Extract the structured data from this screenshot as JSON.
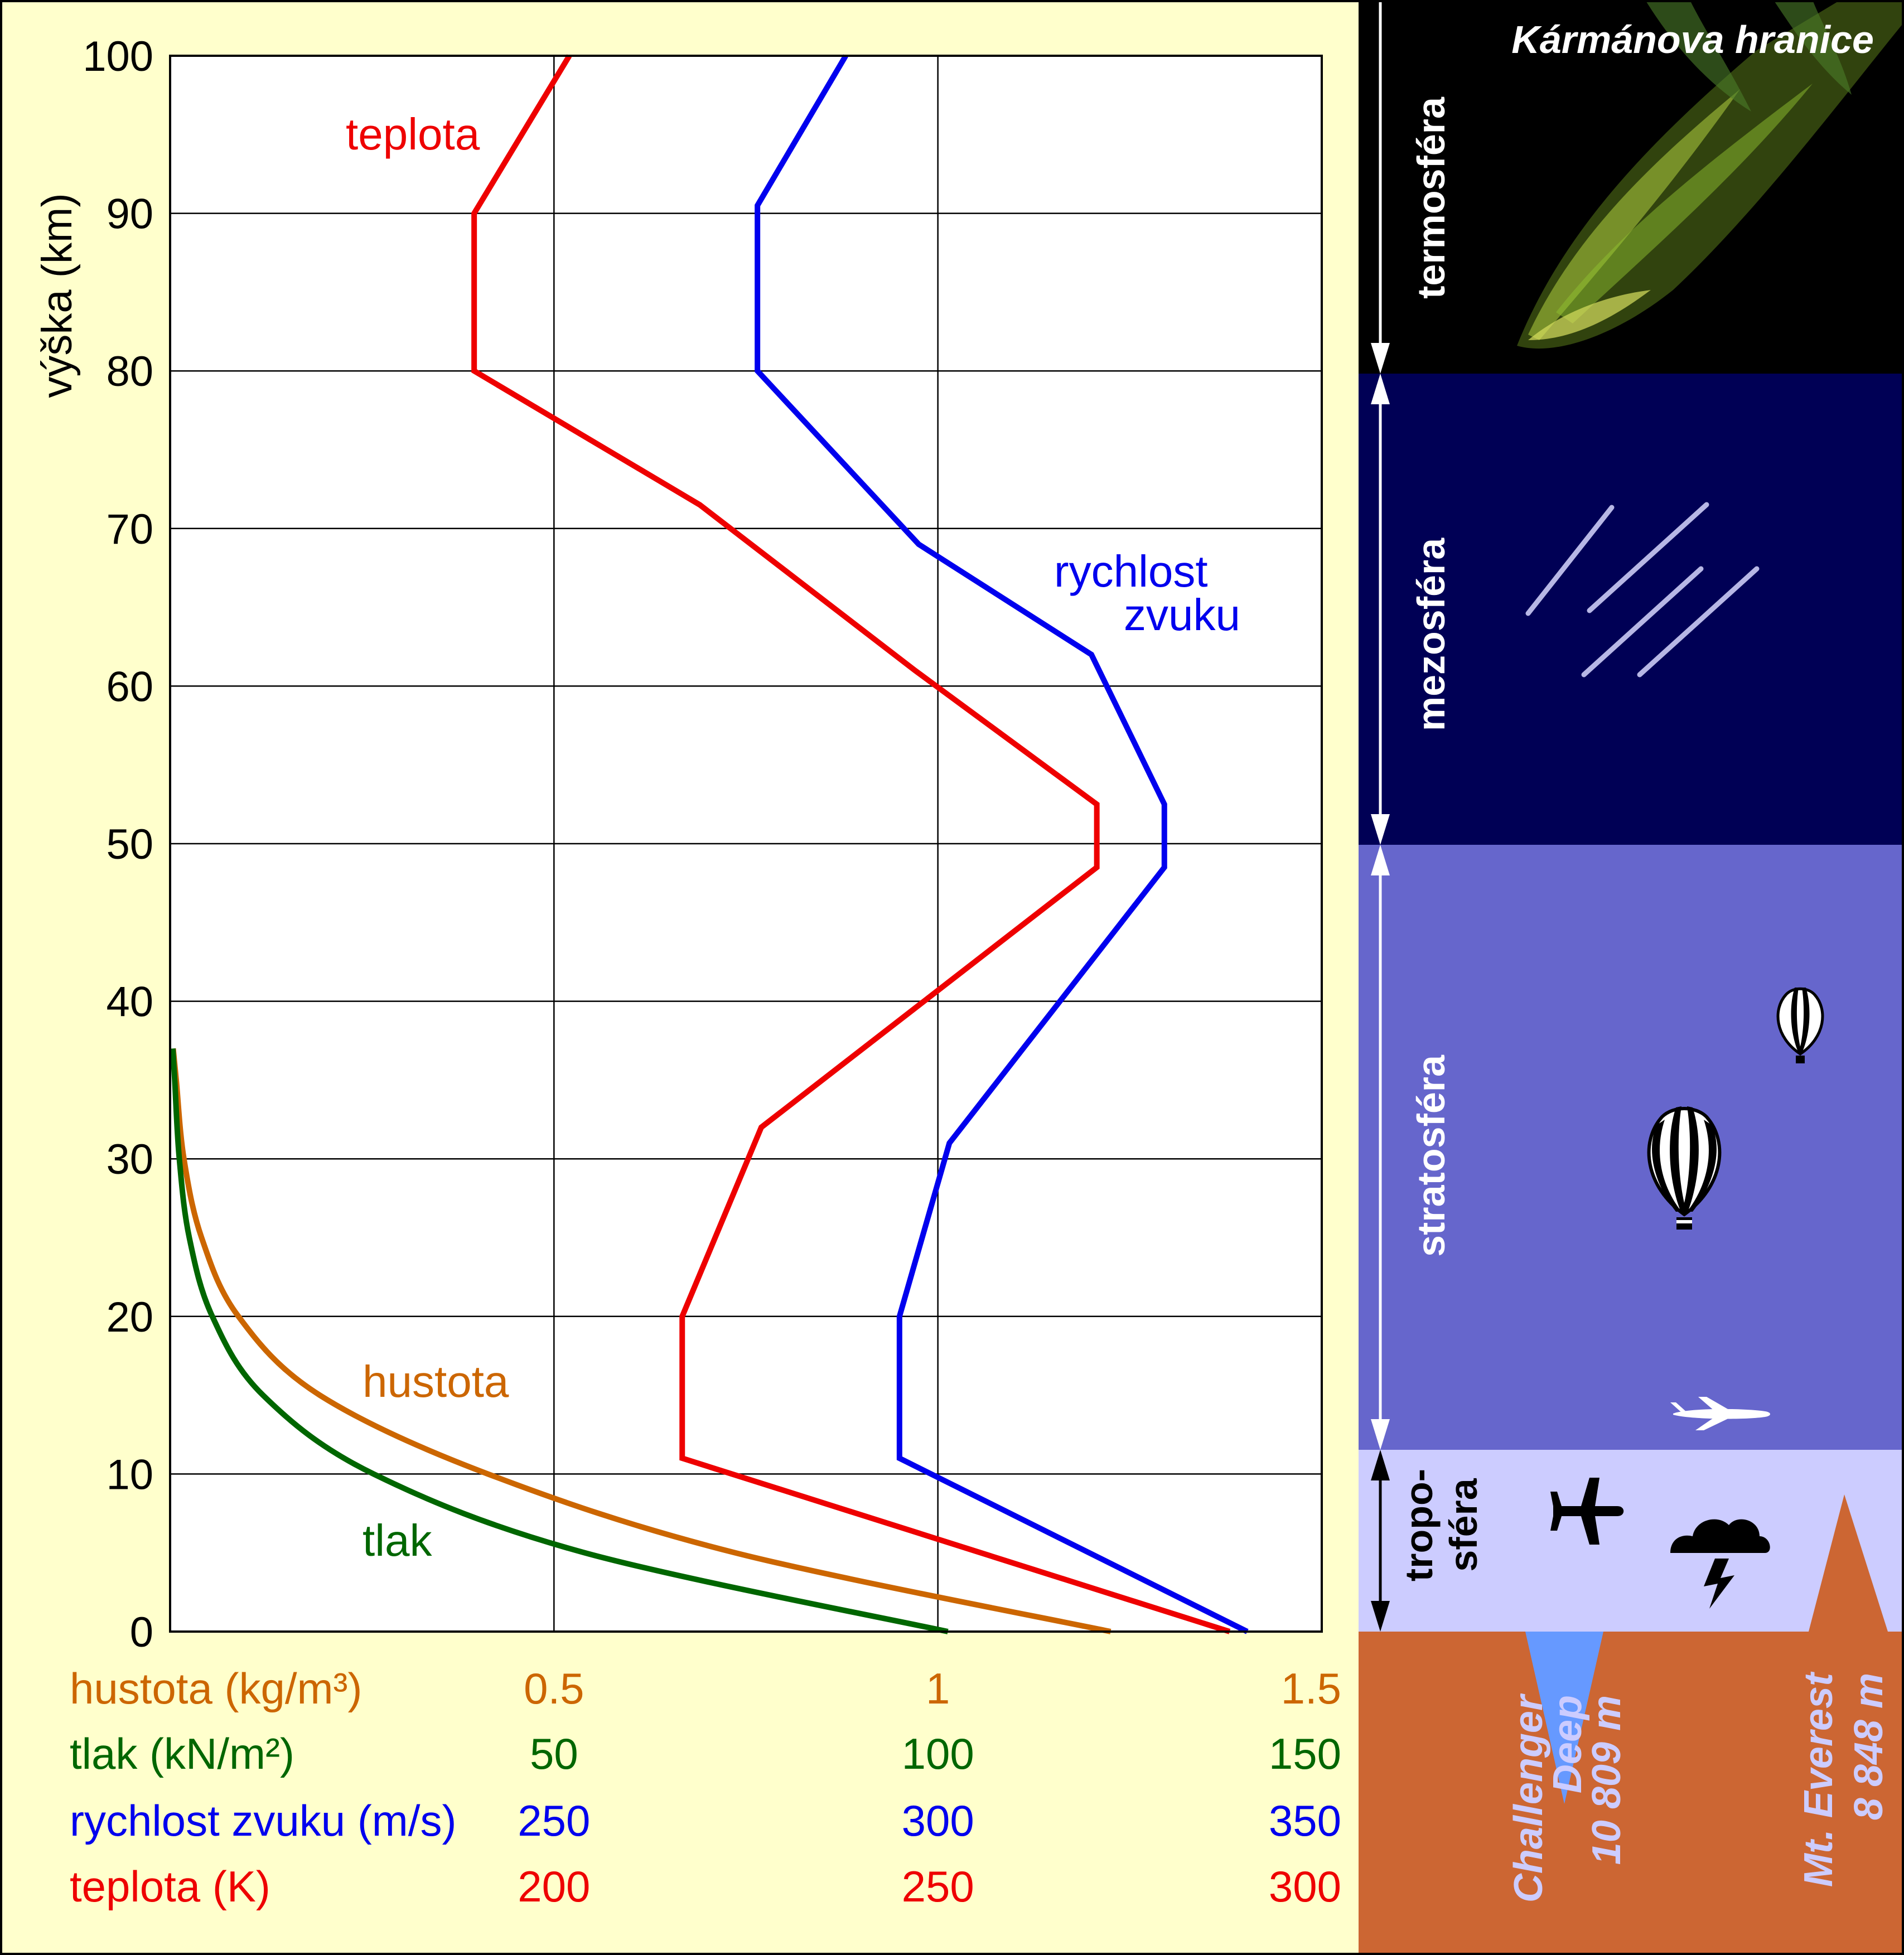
{
  "chart_data": {
    "type": "line",
    "ylabel": "výška (km)",
    "ylim": [
      0,
      100
    ],
    "yticks": [
      "0",
      "10",
      "20",
      "30",
      "40",
      "50",
      "60",
      "70",
      "80",
      "90",
      "100"
    ],
    "grid": true,
    "axes": [
      {
        "label": "hustota (kg/m³)",
        "color": "#cc6600",
        "ticks": [
          "0.5",
          "1",
          "1.5"
        ],
        "range": [
          0,
          1.5
        ]
      },
      {
        "label": "tlak (kN/m²)",
        "color": "#006600",
        "ticks": [
          "50",
          "100",
          "150"
        ],
        "range": [
          0,
          150
        ]
      },
      {
        "label": "rychlost zvuku (m/s)",
        "color": "#0000ee",
        "ticks": [
          "250",
          "300",
          "350"
        ],
        "range": [
          200,
          350
        ]
      },
      {
        "label": "teplota (K)",
        "color": "#ee0000",
        "ticks": [
          "200",
          "250",
          "300"
        ],
        "range": [
          150,
          300
        ]
      }
    ],
    "series": [
      {
        "name": "teplota",
        "label_lines": [
          "teplota"
        ],
        "color": "#ee0000",
        "points": [
          [
            288,
            0
          ],
          [
            216.7,
            11
          ],
          [
            216.7,
            20
          ],
          [
            227,
            32
          ],
          [
            270.7,
            48.5
          ],
          [
            270.7,
            52.5
          ],
          [
            247,
            61
          ],
          [
            219,
            71.5
          ],
          [
            189.6,
            80
          ],
          [
            189.6,
            90
          ],
          [
            202,
            100
          ]
        ]
      },
      {
        "name": "rychlost zvuku",
        "label_lines": [
          "rychlost",
          "zvuku"
        ],
        "color": "#0000ee",
        "points": [
          [
            340.3,
            0
          ],
          [
            295,
            11
          ],
          [
            295,
            20
          ],
          [
            301.5,
            31
          ],
          [
            329.5,
            48.5
          ],
          [
            329.5,
            52.5
          ],
          [
            320,
            62
          ],
          [
            297.5,
            69
          ],
          [
            276.5,
            80
          ],
          [
            276.5,
            90.5
          ],
          [
            288,
            100
          ]
        ]
      },
      {
        "name": "hustota",
        "label_lines": [
          "hustota"
        ],
        "color": "#cc6600",
        "points": [
          [
            1.225,
            0
          ],
          [
            0.736,
            5
          ],
          [
            0.414,
            10
          ],
          [
            0.195,
            15
          ],
          [
            0.089,
            20
          ],
          [
            0.041,
            25
          ],
          [
            0.018,
            30
          ],
          [
            0.008,
            35
          ],
          [
            0.004,
            37
          ]
        ]
      },
      {
        "name": "tlak",
        "label_lines": [
          "tlak"
        ],
        "color": "#006600",
        "points": [
          [
            101.3,
            0
          ],
          [
            54.0,
            5
          ],
          [
            26.5,
            10
          ],
          [
            12.1,
            15
          ],
          [
            5.5,
            20
          ],
          [
            2.5,
            25
          ],
          [
            1.2,
            30
          ],
          [
            0.6,
            35
          ],
          [
            0.35,
            37
          ]
        ]
      }
    ]
  },
  "layers": {
    "karman_label": "Kármánova hranice",
    "termosfera": "termosféra",
    "mezosfera": "mezosféra",
    "stratosfera": "stratosféra",
    "troposfera_line1": "tropo-",
    "troposfera_line2": "sféra",
    "colors": {
      "termosfera": "#000000",
      "mezosfera": "#000055",
      "stratosfera": "#6666cc",
      "troposfera": "#ccccff",
      "ground": "#cc6633",
      "ocean": "#6699ff"
    }
  },
  "features": {
    "challenger_line1": "Challenger",
    "challenger_line2": "Deep",
    "challenger_line3": "10 809 m",
    "everest_line1": "Mt. Everest",
    "everest_line2": "8 848 m"
  }
}
